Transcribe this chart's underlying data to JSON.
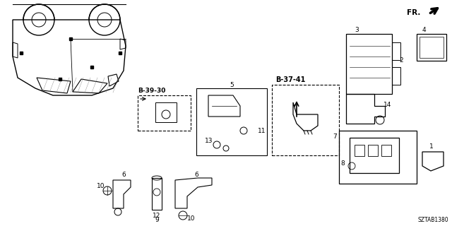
{
  "bg_color": "#ffffff",
  "diagram_label": "SZTAB1380",
  "fr_text": "FR.",
  "ref1": "B-39-30",
  "ref2": "B-37-41",
  "fig_w": 6.4,
  "fig_h": 3.2,
  "dpi": 100
}
